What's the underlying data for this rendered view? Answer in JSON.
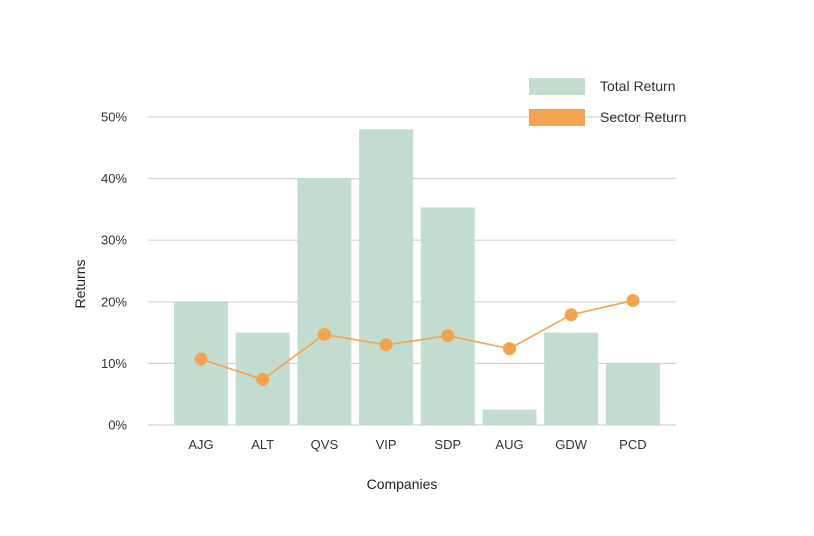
{
  "chart_data": {
    "type": "bar",
    "categories": [
      "AJG",
      "ALT",
      "QVS",
      "VIP",
      "SDP",
      "AUG",
      "GDW",
      "PCD"
    ],
    "series": [
      {
        "name": "Total Return",
        "type": "bar",
        "values": [
          20,
          15,
          40,
          48,
          35.3,
          2.5,
          15,
          10
        ],
        "color": "#c2dcd0"
      },
      {
        "name": "Sector Return",
        "type": "line",
        "values": [
          10.7,
          7.4,
          14.7,
          13,
          14.5,
          12.4,
          17.9,
          20.2
        ],
        "color": "#f4a24d"
      }
    ],
    "xlabel": "Companies",
    "ylabel": "Returns",
    "ylim": [
      0,
      50
    ],
    "yticks": [
      "0%",
      "10%",
      "20%",
      "30%",
      "40%",
      "50%"
    ],
    "grid": true,
    "legend_position": "top-right",
    "gridline_color": "#d3d3d3"
  }
}
